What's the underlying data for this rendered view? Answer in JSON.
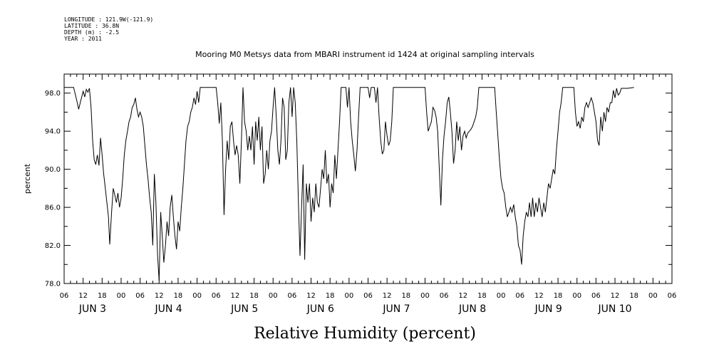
{
  "header": {
    "meta_lines": [
      "LONGITUDE : 121.9W(-121.9)",
      "LATITUDE : 36.8N",
      "DEPTH (m) : -2.5",
      "YEAR : 2011"
    ]
  },
  "chart_data": {
    "type": "line",
    "title": "Mooring M0 Metsys data from MBARI instrument id 1424 at original sampling intervals",
    "xlabel": "Relative Humidity (percent)",
    "ylabel": "percent",
    "x_units": "hours since JUN 2 06:00",
    "xlim": [
      0,
      192
    ],
    "ylim": [
      78,
      100
    ],
    "y_ticks": [
      78,
      82,
      86,
      90,
      94,
      98
    ],
    "y_tick_labels": [
      "78.0",
      "82.0",
      "86.0",
      "90.0",
      "94.0",
      "98.0"
    ],
    "x_hour_labels": [
      "06",
      "12",
      "18",
      "00",
      "06",
      "12",
      "18",
      "00",
      "06",
      "12",
      "18",
      "00",
      "06",
      "12",
      "18",
      "00",
      "06",
      "12",
      "18",
      "00",
      "06",
      "12",
      "18",
      "00",
      "06",
      "12",
      "18",
      "00",
      "06",
      "12",
      "18",
      "00",
      "06"
    ],
    "day_labels": [
      {
        "label": "JUN 3",
        "hour": 9
      },
      {
        "label": "JUN 4",
        "hour": 33
      },
      {
        "label": "JUN 5",
        "hour": 57
      },
      {
        "label": "JUN 6",
        "hour": 81
      },
      {
        "label": "JUN 7",
        "hour": 105
      },
      {
        "label": "JUN 8",
        "hour": 129
      },
      {
        "label": "JUN 9",
        "hour": 153
      },
      {
        "label": "JUN 10",
        "hour": 174
      }
    ],
    "grid": false,
    "series": [
      {
        "values": [
          [
            0,
            98.6
          ],
          [
            3,
            98.6
          ],
          [
            4,
            97.2
          ],
          [
            4.6,
            96.3
          ],
          [
            5.4,
            97.4
          ],
          [
            6,
            98.2
          ],
          [
            6.5,
            97.6
          ],
          [
            7,
            98.4
          ],
          [
            7.5,
            98.1
          ],
          [
            8,
            98.5
          ],
          [
            8.5,
            96.5
          ],
          [
            9,
            93
          ],
          [
            9.5,
            91
          ],
          [
            10,
            90.5
          ],
          [
            10.5,
            91.5
          ],
          [
            11,
            90.4
          ],
          [
            11.5,
            93.3
          ],
          [
            12,
            91.5
          ],
          [
            12.5,
            89.5
          ],
          [
            13,
            88
          ],
          [
            13.5,
            86.5
          ],
          [
            14,
            85
          ],
          [
            14.4,
            82.1
          ],
          [
            15,
            85.5
          ],
          [
            15.5,
            88
          ],
          [
            16,
            87.3
          ],
          [
            16.5,
            86.5
          ],
          [
            17,
            87.5
          ],
          [
            17.5,
            86
          ],
          [
            18,
            87
          ],
          [
            18.5,
            89
          ],
          [
            19,
            91.5
          ],
          [
            19.5,
            93
          ],
          [
            20,
            94
          ],
          [
            20.5,
            95
          ],
          [
            21,
            95.5
          ],
          [
            21.5,
            96.5
          ],
          [
            22,
            96.8
          ],
          [
            22.5,
            97.5
          ],
          [
            23,
            96.3
          ],
          [
            23.5,
            95.5
          ],
          [
            24,
            96
          ],
          [
            24.5,
            95.5
          ],
          [
            25,
            94.5
          ],
          [
            25.5,
            92.5
          ],
          [
            26,
            90.5
          ],
          [
            26.5,
            89
          ],
          [
            27,
            87
          ],
          [
            27.5,
            85.5
          ],
          [
            28,
            82
          ],
          [
            28.5,
            89.5
          ],
          [
            29,
            86.5
          ],
          [
            29.5,
            81
          ],
          [
            30,
            78.3
          ],
          [
            30.5,
            85.5
          ],
          [
            31,
            83
          ],
          [
            31.5,
            80.2
          ],
          [
            32,
            82
          ],
          [
            32.5,
            84.5
          ],
          [
            33,
            83
          ],
          [
            33.5,
            86
          ],
          [
            34,
            87.3
          ],
          [
            34.5,
            85
          ],
          [
            35,
            83
          ],
          [
            35.5,
            81.6
          ],
          [
            36,
            84.5
          ],
          [
            36.5,
            83.5
          ],
          [
            37,
            86
          ],
          [
            37.5,
            88
          ],
          [
            38,
            90.5
          ],
          [
            38.5,
            93
          ],
          [
            39,
            94.5
          ],
          [
            39.5,
            95
          ],
          [
            40,
            96
          ],
          [
            40.5,
            96.5
          ],
          [
            41,
            97.5
          ],
          [
            41.5,
            96.8
          ],
          [
            42,
            98.2
          ],
          [
            42.5,
            97
          ],
          [
            43,
            98.6
          ],
          [
            48,
            98.6
          ],
          [
            48.5,
            97
          ],
          [
            49,
            94.8
          ],
          [
            49.5,
            97
          ],
          [
            50,
            93
          ],
          [
            50.5,
            85.2
          ],
          [
            51,
            90
          ],
          [
            51.5,
            93
          ],
          [
            52,
            91
          ],
          [
            52.5,
            94.5
          ],
          [
            53,
            95
          ],
          [
            53.5,
            93
          ],
          [
            54,
            91.5
          ],
          [
            54.5,
            92.5
          ],
          [
            55,
            91.5
          ],
          [
            55.5,
            88.5
          ],
          [
            56,
            93
          ],
          [
            56.5,
            98.6
          ],
          [
            57,
            95
          ],
          [
            57.5,
            94
          ],
          [
            58,
            92
          ],
          [
            58.5,
            93.5
          ],
          [
            59,
            92
          ],
          [
            59.5,
            94.5
          ],
          [
            60,
            90.5
          ],
          [
            60.5,
            95
          ],
          [
            61,
            93
          ],
          [
            61.5,
            95.5
          ],
          [
            62,
            92
          ],
          [
            62.5,
            94.5
          ],
          [
            63,
            88.5
          ],
          [
            63.5,
            89.5
          ],
          [
            64,
            92
          ],
          [
            64.5,
            90
          ],
          [
            65,
            93
          ],
          [
            65.5,
            94
          ],
          [
            66,
            96.5
          ],
          [
            66.5,
            98.6
          ],
          [
            67,
            95.5
          ],
          [
            67.5,
            92
          ],
          [
            68,
            90.5
          ],
          [
            68.5,
            93
          ],
          [
            69,
            97.5
          ],
          [
            69.5,
            96.5
          ],
          [
            70,
            91
          ],
          [
            70.5,
            92
          ],
          [
            71,
            97
          ],
          [
            71.5,
            98.6
          ],
          [
            72,
            95.5
          ],
          [
            72.5,
            98.6
          ],
          [
            73,
            97
          ],
          [
            73.5,
            93
          ],
          [
            74,
            86.5
          ],
          [
            74.5,
            80.9
          ],
          [
            75,
            86
          ],
          [
            75.5,
            90.5
          ],
          [
            76,
            80.5
          ],
          [
            76.5,
            88.5
          ],
          [
            77,
            86.5
          ],
          [
            77.5,
            88.5
          ],
          [
            78,
            84.5
          ],
          [
            78.5,
            87
          ],
          [
            79,
            85.5
          ],
          [
            79.5,
            88.5
          ],
          [
            80,
            86.5
          ],
          [
            80.5,
            86
          ],
          [
            81,
            88
          ],
          [
            81.5,
            90
          ],
          [
            82,
            89
          ],
          [
            82.5,
            92
          ],
          [
            83,
            88.5
          ],
          [
            83.5,
            89.5
          ],
          [
            84,
            86
          ],
          [
            84.5,
            88.5
          ],
          [
            85,
            87.5
          ],
          [
            85.5,
            91.5
          ],
          [
            86,
            89
          ],
          [
            86.5,
            92
          ],
          [
            87,
            95
          ],
          [
            87.5,
            98.6
          ],
          [
            89,
            98.6
          ],
          [
            89.5,
            96.5
          ],
          [
            90,
            98.6
          ],
          [
            90.5,
            95
          ],
          [
            91,
            93
          ],
          [
            91.5,
            91.5
          ],
          [
            92,
            89.8
          ],
          [
            92.5,
            92
          ],
          [
            93,
            95.5
          ],
          [
            93.5,
            98.6
          ],
          [
            96,
            98.6
          ],
          [
            96.5,
            97.5
          ],
          [
            97,
            98.6
          ],
          [
            98,
            98.6
          ],
          [
            98.5,
            97
          ],
          [
            99,
            98.6
          ],
          [
            99.5,
            95.5
          ],
          [
            100,
            93
          ],
          [
            100.5,
            91.6
          ],
          [
            101,
            92
          ],
          [
            101.5,
            95
          ],
          [
            102,
            93.5
          ],
          [
            102.5,
            92.5
          ],
          [
            103,
            93
          ],
          [
            103.5,
            95
          ],
          [
            104,
            98.6
          ],
          [
            114,
            98.6
          ],
          [
            114.5,
            96
          ],
          [
            115,
            94
          ],
          [
            115.5,
            94.5
          ],
          [
            116,
            95
          ],
          [
            116.5,
            96.5
          ],
          [
            117,
            96.2
          ],
          [
            117.5,
            95.5
          ],
          [
            118,
            94
          ],
          [
            118.5,
            90
          ],
          [
            119,
            86.2
          ],
          [
            119.5,
            91
          ],
          [
            120,
            93.5
          ],
          [
            120.5,
            95
          ],
          [
            121,
            97
          ],
          [
            121.5,
            97.6
          ],
          [
            122,
            96
          ],
          [
            122.5,
            94
          ],
          [
            123,
            90.6
          ],
          [
            123.5,
            92
          ],
          [
            124,
            95
          ],
          [
            124.5,
            93
          ],
          [
            125,
            94.5
          ],
          [
            125.5,
            92
          ],
          [
            126,
            93.5
          ],
          [
            126.5,
            94
          ],
          [
            127,
            93.3
          ],
          [
            127.5,
            93.8
          ],
          [
            128,
            94
          ],
          [
            128.5,
            94.2
          ],
          [
            129,
            94.5
          ],
          [
            129.5,
            95
          ],
          [
            130,
            95.5
          ],
          [
            130.5,
            96.5
          ],
          [
            131,
            98.6
          ],
          [
            136,
            98.6
          ],
          [
            136.5,
            96
          ],
          [
            137,
            93.5
          ],
          [
            137.5,
            91
          ],
          [
            138,
            89
          ],
          [
            138.5,
            88
          ],
          [
            139,
            87.5
          ],
          [
            139.5,
            86
          ],
          [
            140,
            85
          ],
          [
            140.5,
            85.5
          ],
          [
            141,
            86
          ],
          [
            141.5,
            85.5
          ],
          [
            142,
            86.3
          ],
          [
            142.5,
            85
          ],
          [
            143,
            84
          ],
          [
            143.5,
            82
          ],
          [
            144,
            81.5
          ],
          [
            144.5,
            80
          ],
          [
            145,
            83
          ],
          [
            145.5,
            84.5
          ],
          [
            146,
            85.5
          ],
          [
            146.5,
            85
          ],
          [
            147,
            86.5
          ],
          [
            147.5,
            85
          ],
          [
            148,
            87
          ],
          [
            148.5,
            85
          ],
          [
            149,
            86.5
          ],
          [
            149.5,
            85.5
          ],
          [
            150,
            87
          ],
          [
            150.5,
            86
          ],
          [
            151,
            85
          ],
          [
            151.5,
            86.5
          ],
          [
            152,
            85.5
          ],
          [
            152.5,
            87
          ],
          [
            153,
            88.5
          ],
          [
            153.5,
            88
          ],
          [
            154,
            89
          ],
          [
            154.5,
            90
          ],
          [
            155,
            89.5
          ],
          [
            155.5,
            92
          ],
          [
            156,
            94
          ],
          [
            156.5,
            96
          ],
          [
            157,
            97
          ],
          [
            157.5,
            98.6
          ],
          [
            161,
            98.6
          ],
          [
            161.5,
            96
          ],
          [
            162,
            94.5
          ],
          [
            162.5,
            95
          ],
          [
            163,
            94.3
          ],
          [
            163.5,
            95.5
          ],
          [
            164,
            95
          ],
          [
            164.5,
            96.5
          ],
          [
            165,
            97
          ],
          [
            165.5,
            96.5
          ],
          [
            166,
            97
          ],
          [
            166.5,
            97.5
          ],
          [
            167,
            97
          ],
          [
            167.5,
            96
          ],
          [
            168,
            95
          ],
          [
            168.5,
            93
          ],
          [
            169,
            92.5
          ],
          [
            169.5,
            95.5
          ],
          [
            170,
            94
          ],
          [
            170.5,
            96
          ],
          [
            171,
            95
          ],
          [
            171.5,
            96.5
          ],
          [
            172,
            96
          ],
          [
            172.5,
            97
          ],
          [
            173,
            97
          ],
          [
            173.5,
            98.3
          ],
          [
            174,
            97.5
          ],
          [
            174.5,
            98.5
          ],
          [
            175,
            97.8
          ],
          [
            175.5,
            98
          ],
          [
            176,
            98.5
          ],
          [
            178,
            98.5
          ],
          [
            180,
            98.6
          ]
        ]
      }
    ]
  }
}
